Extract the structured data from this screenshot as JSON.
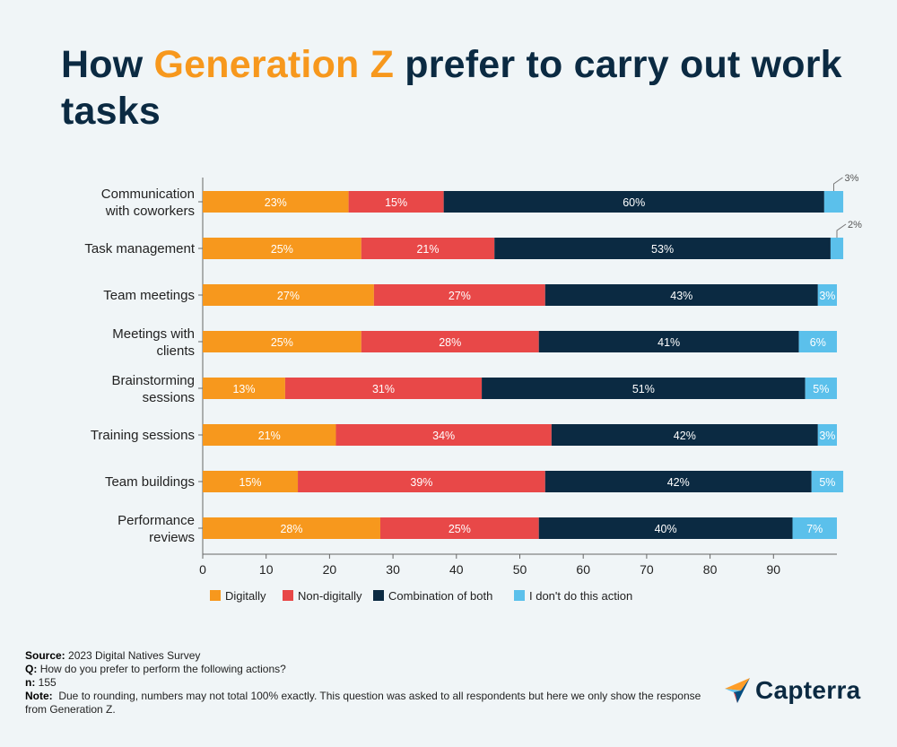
{
  "header": {
    "title_pre": "How ",
    "title_highlight": "Generation Z",
    "title_post": " prefer to carry out work tasks"
  },
  "colors": {
    "digitally": "#f7981d",
    "non_digitally": "#e84848",
    "combination": "#0b2a42",
    "dont_do": "#5bc0eb",
    "title": "#0b2a42",
    "highlight": "#f7981d"
  },
  "chart_data": {
    "type": "bar",
    "orientation": "horizontal",
    "stacked": true,
    "categories": [
      [
        "Communication",
        "with coworkers"
      ],
      [
        "Task management"
      ],
      [
        "Team meetings"
      ],
      [
        "Meetings with",
        "clients"
      ],
      [
        "Brainstorming",
        "sessions"
      ],
      [
        "Training sessions"
      ],
      [
        "Team buildings"
      ],
      [
        "Performance",
        "reviews"
      ]
    ],
    "series": [
      {
        "name": "Digitally",
        "values": [
          23,
          25,
          27,
          25,
          13,
          21,
          15,
          28
        ]
      },
      {
        "name": "Non-digitally",
        "values": [
          15,
          21,
          27,
          28,
          31,
          34,
          39,
          25
        ]
      },
      {
        "name": "Combination of both",
        "values": [
          60,
          53,
          43,
          41,
          51,
          42,
          42,
          40
        ]
      },
      {
        "name": "I don't do this action",
        "values": [
          3,
          2,
          3,
          6,
          5,
          3,
          5,
          7
        ]
      }
    ],
    "xticks": [
      0,
      10,
      20,
      30,
      40,
      50,
      60,
      70,
      80,
      90
    ],
    "xlim": [
      0,
      100
    ],
    "value_suffix": "%",
    "legend_position": "bottom",
    "grid": false
  },
  "footer": {
    "source_label": "Source:",
    "source_text": "2023 Digital Natives Survey",
    "q_label": "Q:",
    "q_text": "How do you prefer to perform the following actions?",
    "n_label": "n:",
    "n_text": "155",
    "note_label": "Note:",
    "note_text": "Due to rounding, numbers may not total 100% exactly. This question was asked to all respondents but here we only show the response from Generation Z."
  },
  "logo": {
    "text": "Capterra",
    "icon": "capterra-arrow-icon"
  }
}
